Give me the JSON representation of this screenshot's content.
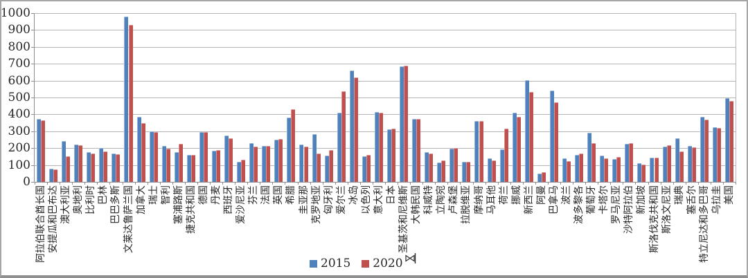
{
  "window": {
    "background": "#ffffff",
    "border_color": "#a6a6a6"
  },
  "icons": {
    "cursor": "resize-cursor"
  },
  "chart_data": {
    "type": "bar",
    "title": "",
    "xlabel": "",
    "ylabel": "",
    "categories": [
      "阿拉伯联合酋长国",
      "安提瓜和巴布达",
      "澳大利亚",
      "奥地利",
      "比利时",
      "巴林",
      "巴巴多斯",
      "文莱达鲁萨兰国",
      "加拿大",
      "瑞士",
      "智利",
      "塞浦路斯",
      "捷克共和国",
      "德国",
      "丹麦",
      "西班牙",
      "爱沙尼亚",
      "芬兰",
      "法国",
      "英国",
      "希腊",
      "圭亚那",
      "克罗地亚",
      "匈牙利",
      "爱尔兰",
      "冰岛",
      "以色列",
      "意大利",
      "日本",
      "圣基茨和尼维斯",
      "大韩民国",
      "科威特",
      "立陶宛",
      "卢森堡",
      "拉脱维亚",
      "摩纳哥",
      "马耳他",
      "荷兰",
      "挪威",
      "新西兰",
      "阿曼",
      "巴拿马",
      "波兰",
      "波多黎各",
      "葡萄牙",
      "卡塔尔",
      "罗马尼亚",
      "沙特阿拉伯",
      "新加坡",
      "斯洛伐克共和国",
      "斯洛文尼亚",
      "瑞典",
      "塞舌尔",
      "特立尼达和多巴哥",
      "乌拉圭",
      "美国"
    ],
    "series": [
      {
        "name": "2015",
        "color": "#4F81BD",
        "values": [
          375,
          80,
          240,
          220,
          175,
          200,
          168,
          980,
          387,
          298,
          212,
          177,
          158,
          297,
          185,
          274,
          120,
          230,
          214,
          251,
          381,
          222,
          284,
          157,
          410,
          662,
          150,
          416,
          310,
          685,
          374,
          177,
          113,
          197,
          120,
          362,
          138,
          191,
          412,
          602,
          49,
          543,
          139,
          158,
          293,
          156,
          134,
          227,
          109,
          145,
          211,
          258,
          213,
          385,
          322,
          495
        ]
      },
      {
        "name": "2020",
        "color": "#C0504D",
        "values": [
          365,
          75,
          150,
          216,
          168,
          180,
          163,
          930,
          348,
          294,
          195,
          224,
          158,
          294,
          188,
          259,
          130,
          209,
          214,
          256,
          430,
          210,
          170,
          187,
          539,
          621,
          160,
          410,
          315,
          690,
          374,
          170,
          126,
          202,
          120,
          362,
          126,
          314,
          386,
          533,
          59,
          473,
          123,
          170,
          228,
          138,
          147,
          228,
          103,
          143,
          217,
          179,
          206,
          370,
          320,
          478
        ]
      }
    ],
    "ylim": [
      0,
      1000
    ],
    "ytick_step": 100,
    "ytick_labels": [
      "0",
      "100",
      "200",
      "300",
      "400",
      "500",
      "600",
      "700",
      "800",
      "900",
      "1000"
    ],
    "grid": true,
    "gridline_color": "#b5b5b5",
    "axis_color": "#8c8c8c",
    "legend_position": "bottom-center"
  }
}
